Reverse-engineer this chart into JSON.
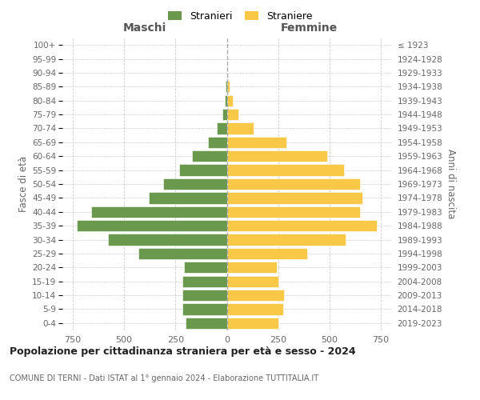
{
  "age_groups": [
    "0-4",
    "5-9",
    "10-14",
    "15-19",
    "20-24",
    "25-29",
    "30-34",
    "35-39",
    "40-44",
    "45-49",
    "50-54",
    "55-59",
    "60-64",
    "65-69",
    "70-74",
    "75-79",
    "80-84",
    "85-89",
    "90-94",
    "95-99",
    "100+"
  ],
  "birth_years": [
    "2019-2023",
    "2014-2018",
    "2009-2013",
    "2004-2008",
    "1999-2003",
    "1994-1998",
    "1989-1993",
    "1984-1988",
    "1979-1983",
    "1974-1978",
    "1969-1973",
    "1964-1968",
    "1959-1963",
    "1954-1958",
    "1949-1953",
    "1944-1948",
    "1939-1943",
    "1934-1938",
    "1929-1933",
    "1924-1928",
    "≤ 1923"
  ],
  "males": [
    200,
    215,
    215,
    215,
    210,
    430,
    580,
    730,
    660,
    380,
    310,
    230,
    170,
    90,
    50,
    20,
    10,
    5,
    0,
    0,
    0
  ],
  "females": [
    250,
    275,
    280,
    250,
    245,
    390,
    580,
    730,
    650,
    660,
    650,
    570,
    490,
    290,
    130,
    55,
    30,
    15,
    0,
    0,
    0
  ],
  "male_color": "#6a994e",
  "female_color": "#f9c846",
  "background_color": "#ffffff",
  "grid_color": "#cccccc",
  "xlim": 800,
  "title": "Popolazione per cittadinanza straniera per età e sesso - 2024",
  "subtitle": "COMUNE DI TERNI - Dati ISTAT al 1° gennaio 2024 - Elaborazione TUTTITALIA.IT",
  "ylabel_left": "Fasce di età",
  "ylabel_right": "Anni di nascita",
  "xlabel_left": "Maschi",
  "xlabel_right": "Femmine",
  "legend_stranieri": "Stranieri",
  "legend_straniere": "Straniere",
  "xtick_vals": [
    -750,
    -500,
    -250,
    0,
    250,
    500,
    750
  ],
  "xtick_labels": [
    "750",
    "500",
    "250",
    "0",
    "250",
    "500",
    "750"
  ]
}
